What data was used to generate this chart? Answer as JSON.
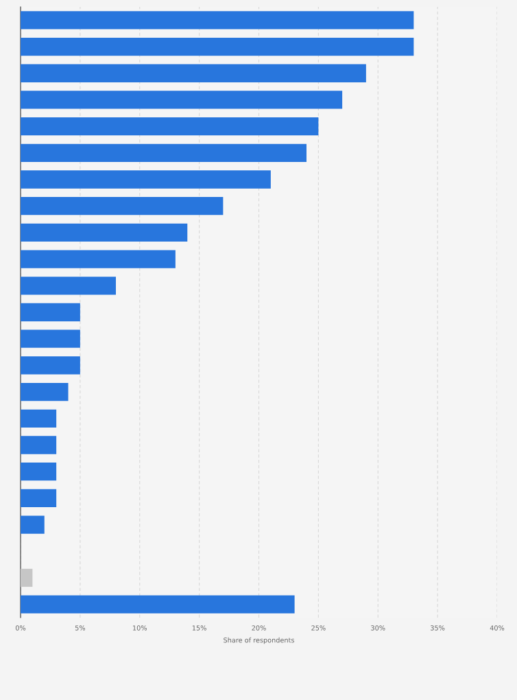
{
  "chart_data": {
    "type": "bar",
    "orientation": "horizontal",
    "xlabel": "Share of respondents",
    "categories": [
      null,
      null,
      null,
      null,
      null,
      null,
      null,
      null,
      null,
      null,
      null,
      null,
      null,
      null,
      null,
      null,
      null,
      null,
      null,
      null,
      null,
      null,
      null
    ],
    "values": [
      33,
      33,
      29,
      27,
      25,
      24,
      21,
      17,
      14,
      13,
      8,
      5,
      5,
      5,
      4,
      3,
      3,
      3,
      3,
      2,
      null,
      1,
      23
    ],
    "colors": [
      "#2876dd",
      "#2876dd",
      "#2876dd",
      "#2876dd",
      "#2876dd",
      "#2876dd",
      "#2876dd",
      "#2876dd",
      "#2876dd",
      "#2876dd",
      "#2876dd",
      "#2876dd",
      "#2876dd",
      "#2876dd",
      "#2876dd",
      "#2876dd",
      "#2876dd",
      "#2876dd",
      "#2876dd",
      "#2876dd",
      "#2876dd",
      "#c6c6c6",
      "#2876dd"
    ],
    "xlim": [
      0,
      40
    ],
    "xticks": [
      {
        "value": 0,
        "label": "0%"
      },
      {
        "value": 5,
        "label": "5%"
      },
      {
        "value": 10,
        "label": "10%"
      },
      {
        "value": 15,
        "label": "15%"
      },
      {
        "value": 20,
        "label": "20%"
      },
      {
        "value": 25,
        "label": "25%"
      },
      {
        "value": 30,
        "label": "30%"
      },
      {
        "value": 35,
        "label": "35%"
      },
      {
        "value": 40,
        "label": "40%"
      }
    ],
    "grid": "x"
  }
}
